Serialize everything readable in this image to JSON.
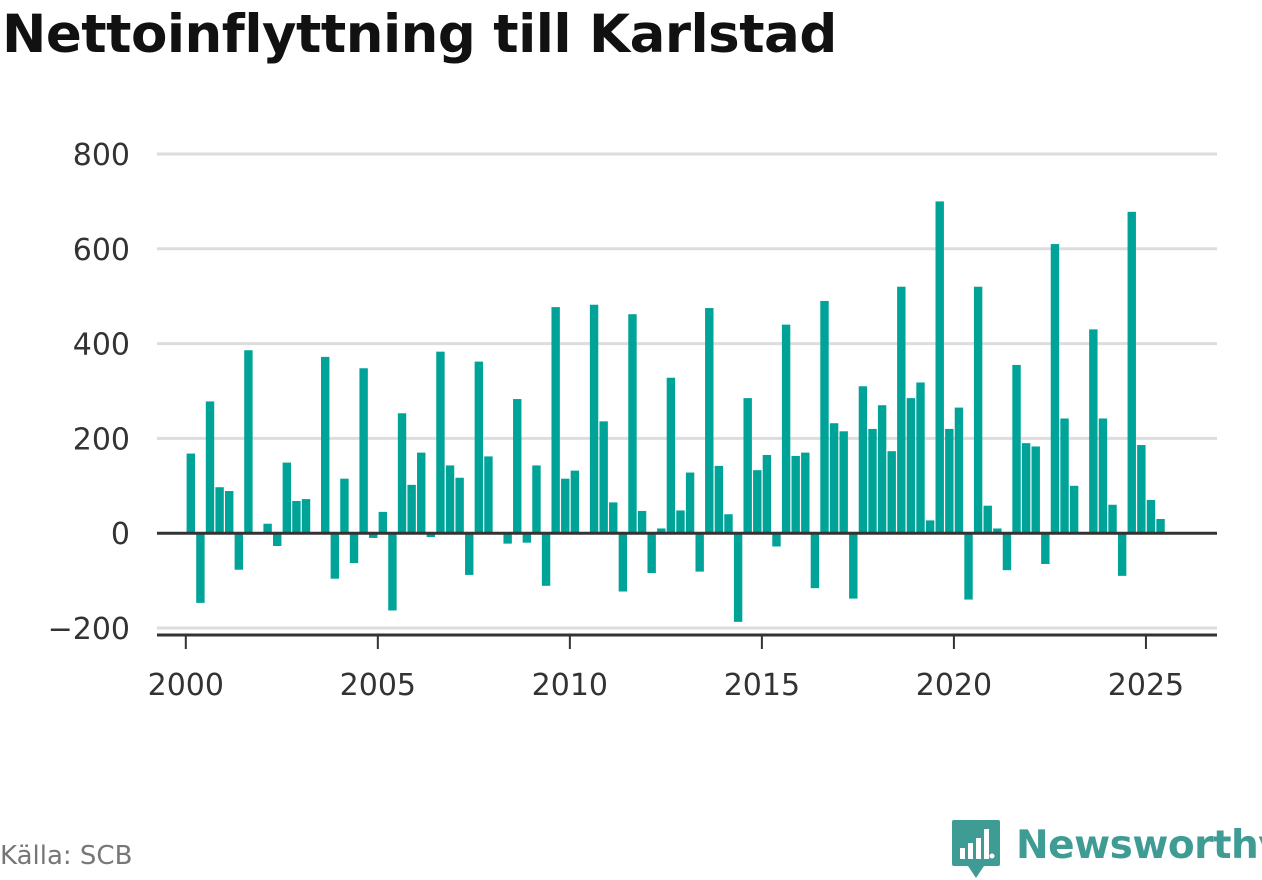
{
  "chart_data": {
    "type": "bar",
    "title": "Nettoinflyttning till Karlstad",
    "xlabel": "",
    "ylabel": "",
    "ylim": [
      -200,
      800
    ],
    "xlim": [
      1999.25,
      2026.85
    ],
    "y_ticks": [
      -200,
      0,
      200,
      400,
      600,
      800
    ],
    "y_tick_labels": [
      "−200",
      "0",
      "200",
      "400",
      "600",
      "800"
    ],
    "x_ticks": [
      2000,
      2005,
      2010,
      2015,
      2020,
      2025
    ],
    "x_tick_labels": [
      "2000",
      "2005",
      "2010",
      "2015",
      "2020",
      "2025"
    ],
    "grid": true,
    "bar_color": "#00a398",
    "series": [
      {
        "start": "2000-Q1",
        "frequency": "quarterly",
        "values": [
          168,
          -147,
          278,
          97,
          89,
          -77,
          386,
          0,
          20,
          -27,
          149,
          68,
          72,
          0,
          372,
          -96,
          115,
          -63,
          348,
          -10,
          45,
          -163,
          253,
          102,
          170,
          -8,
          383,
          143,
          117,
          -88,
          362,
          162,
          0,
          -22,
          283,
          -20,
          143,
          -111,
          477,
          115,
          132,
          0,
          482,
          236,
          65,
          -123,
          462,
          47,
          -84,
          10,
          328,
          48,
          128,
          -81,
          475,
          142,
          40,
          -187,
          285,
          133,
          165,
          -28,
          440,
          163,
          170,
          -116,
          490,
          232,
          215,
          -138,
          310,
          220,
          270,
          173,
          520,
          285,
          318,
          27,
          700,
          220,
          265,
          -140,
          520,
          58,
          10,
          -78,
          355,
          190,
          183,
          -65,
          610,
          242,
          100,
          0,
          430,
          242,
          60,
          -90,
          678,
          186,
          70,
          30
        ]
      }
    ]
  },
  "source": "Källa: SCB",
  "brand": "Newsworthy",
  "colors": {
    "bars": "#00a398",
    "grid": "#dddddd",
    "axis": "#333333",
    "brand": "#3f9c94",
    "source_text": "#777777"
  }
}
